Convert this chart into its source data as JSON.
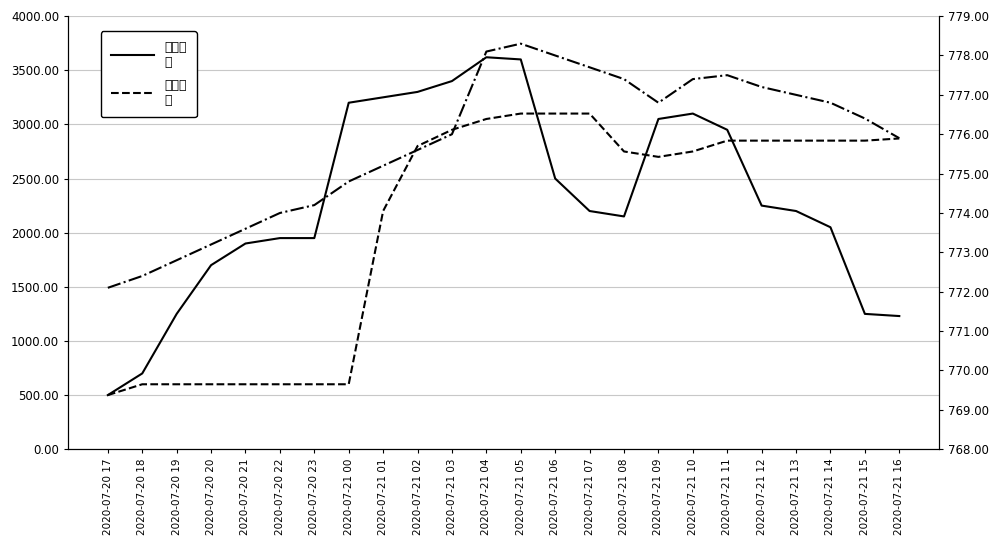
{
  "x_labels": [
    "2020-07-20 17",
    "2020-07-20 18",
    "2020-07-20 19",
    "2020-07-20 20",
    "2020-07-20 21",
    "2020-07-20 22",
    "2020-07-20 23",
    "2020-07-21 00",
    "2020-07-21 01",
    "2020-07-21 02",
    "2020-07-21 03",
    "2020-07-21 04",
    "2020-07-21 05",
    "2020-07-21 06",
    "2020-07-21 07",
    "2020-07-21 08",
    "2020-07-21 09",
    "2020-07-21 10",
    "2020-07-21 11",
    "2020-07-21 12",
    "2020-07-21 13",
    "2020-07-21 14",
    "2020-07-21 15",
    "2020-07-21 16"
  ],
  "inflow": [
    500,
    700,
    1250,
    1700,
    1900,
    1950,
    1950,
    3200,
    3250,
    3300,
    3400,
    3620,
    3600,
    2500,
    2200,
    2150,
    3050,
    3100,
    2950,
    2250,
    2200,
    2050,
    1250,
    1230
  ],
  "outflow": [
    500,
    600,
    600,
    600,
    600,
    600,
    600,
    600,
    2200,
    2800,
    2950,
    3050,
    3100,
    3100,
    3100,
    2750,
    2700,
    2750,
    2850,
    2850,
    2850,
    2850,
    2850,
    2870
  ],
  "water_level": [
    772.1,
    772.4,
    772.8,
    773.2,
    773.6,
    774.0,
    774.2,
    774.8,
    775.2,
    775.6,
    776.0,
    778.1,
    778.3,
    778.0,
    777.7,
    777.4,
    776.8,
    777.4,
    777.5,
    777.2,
    777.0,
    776.8,
    776.4,
    775.9
  ],
  "left_ylim": [
    0,
    4000
  ],
  "left_yticks": [
    0.0,
    500.0,
    1000.0,
    1500.0,
    2000.0,
    2500.0,
    3000.0,
    3500.0,
    4000.0
  ],
  "right_ylim": [
    768.0,
    779.0
  ],
  "right_yticks": [
    768.0,
    769.0,
    770.0,
    771.0,
    772.0,
    773.0,
    774.0,
    775.0,
    776.0,
    777.0,
    778.0,
    779.0
  ],
  "legend_line1": "入库流\n量",
  "legend_line2": "平均出\n库",
  "inflow_color": "#000000",
  "outflow_color": "#000000",
  "water_level_color": "#000000",
  "bg_color": "#ffffff",
  "grid_color": "#c8c8c8"
}
